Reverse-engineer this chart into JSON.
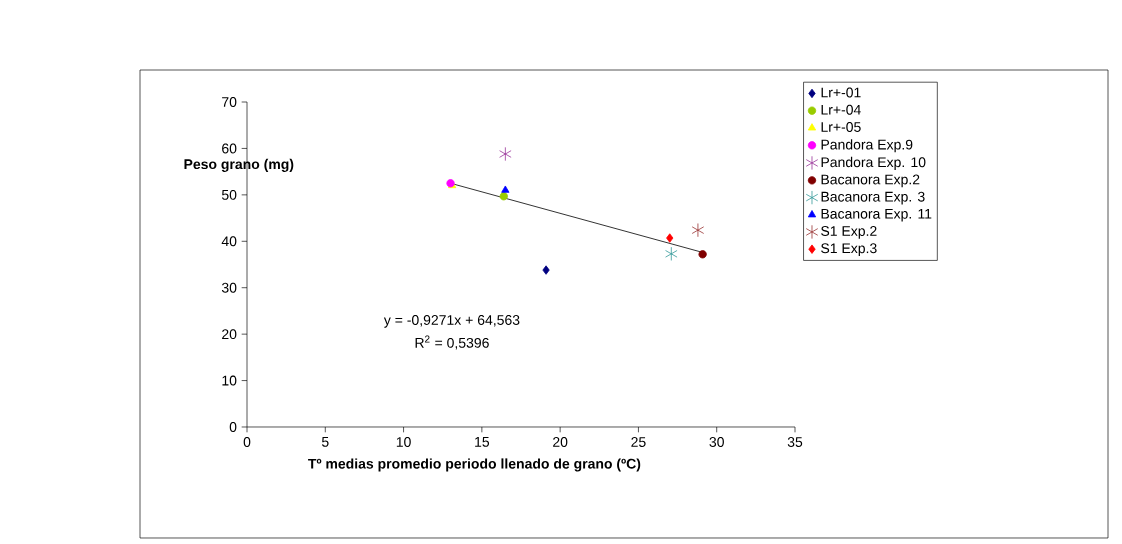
{
  "chart_data": {
    "type": "scatter",
    "xlabel": "Tº medias promedio periodo llenado de grano (ºC)",
    "ylabel": "Peso grano (mg)",
    "xlim": [
      0,
      35
    ],
    "xticks": [
      0,
      5,
      10,
      15,
      20,
      25,
      30,
      35
    ],
    "ylim": [
      0,
      70
    ],
    "yticks": [
      0,
      10,
      20,
      30,
      40,
      50,
      60,
      70
    ],
    "grid": false,
    "legend": "top right",
    "annotations": [
      "y = -0,9271x + 64,563",
      "R$^{2}$ = 0,5396"
    ],
    "series": [
      {
        "name": "Lr+-01",
        "color": "#000080",
        "marker": "diamond",
        "x": [
          19.1
        ],
        "values": [
          33.8
        ]
      },
      {
        "name": "Lr+-04",
        "color": "#99cc00",
        "marker": "circle",
        "x": [
          16.4
        ],
        "values": [
          49.7
        ]
      },
      {
        "name": "Lr+-05",
        "color": "#ffff00",
        "marker": "triangle",
        "x": [
          13.1
        ],
        "values": [
          52.0
        ]
      },
      {
        "name": "Pandora Exp.9",
        "color": "#ff00ff",
        "marker": "circle",
        "x": [
          13.0
        ],
        "values": [
          52.5
        ]
      },
      {
        "name": "Pandora Exp. 10",
        "color": "#993399",
        "marker": "cross",
        "x": [
          16.5
        ],
        "values": [
          58.8
        ]
      },
      {
        "name": "Bacanora Exp.2",
        "color": "#800000",
        "marker": "circle",
        "x": [
          29.1
        ],
        "values": [
          37.2
        ]
      },
      {
        "name": "Bacanora Exp. 3",
        "color": "#339999",
        "marker": "cross",
        "x": [
          27.1
        ],
        "values": [
          37.3
        ]
      },
      {
        "name": "Bacanora Exp. 11",
        "color": "#0000ff",
        "marker": "triangle",
        "x": [
          16.5
        ],
        "values": [
          51.0
        ]
      },
      {
        "name": "S1 Exp.2",
        "color": "#993333",
        "marker": "cross",
        "x": [
          28.8
        ],
        "values": [
          42.4
        ]
      },
      {
        "name": "S1 Exp.3",
        "color": "#ff0000",
        "marker": "diamond",
        "x": [
          27.0
        ],
        "values": [
          40.7
        ]
      },
      {
        "type": "line",
        "color": "#000000",
        "marker": "none",
        "x": [
          13.0,
          29.1
        ],
        "values": [
          52.5,
          37.6
        ]
      }
    ]
  }
}
